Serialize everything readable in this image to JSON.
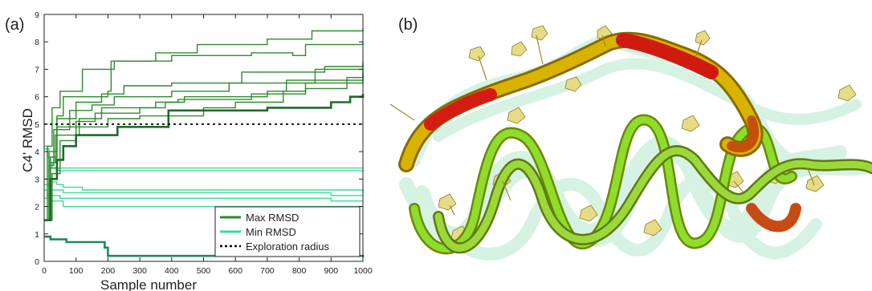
{
  "panels": {
    "a_label": "(a)",
    "b_label": "(b)"
  },
  "chart_data": {
    "type": "line",
    "xlabel": "Sample number",
    "ylabel": "C4' RMSD",
    "xlim": [
      0,
      1000
    ],
    "ylim": [
      0,
      9
    ],
    "xticks": [
      0,
      100,
      200,
      300,
      400,
      500,
      600,
      700,
      800,
      900,
      1000
    ],
    "yticks": [
      0,
      1,
      2,
      3,
      4,
      5,
      6,
      7,
      8,
      9
    ],
    "grid": false,
    "legend_position": "lower-right",
    "legend": [
      {
        "label": "Max RMSD",
        "style": "solid",
        "color": "#2e8b2e"
      },
      {
        "label": "Min RMSD",
        "style": "solid",
        "color": "#3ddc97"
      },
      {
        "label": "Exploration radius",
        "style": "dotted",
        "color": "#000000"
      }
    ],
    "exploration_radius": 5.0,
    "max_series": [
      {
        "bold": false,
        "points": [
          [
            0,
            1.5
          ],
          [
            10,
            4.2
          ],
          [
            25,
            5.6
          ],
          [
            50,
            6.2
          ],
          [
            120,
            7.0
          ],
          [
            200,
            7.0
          ],
          [
            220,
            7.3
          ],
          [
            300,
            7.3
          ],
          [
            350,
            7.6
          ],
          [
            420,
            7.6
          ],
          [
            480,
            7.9
          ],
          [
            650,
            7.9
          ],
          [
            700,
            8.1
          ],
          [
            820,
            8.1
          ],
          [
            840,
            8.4
          ],
          [
            960,
            8.4
          ],
          [
            1000,
            8.5
          ]
        ]
      },
      {
        "bold": false,
        "points": [
          [
            0,
            1.5
          ],
          [
            15,
            4.0
          ],
          [
            40,
            5.3
          ],
          [
            60,
            6.0
          ],
          [
            200,
            6.2
          ],
          [
            210,
            7.3
          ],
          [
            400,
            7.5
          ],
          [
            650,
            7.6
          ],
          [
            780,
            7.5
          ],
          [
            820,
            7.9
          ],
          [
            1000,
            8.0
          ]
        ]
      },
      {
        "bold": false,
        "points": [
          [
            0,
            1.5
          ],
          [
            20,
            3.8
          ],
          [
            40,
            5.2
          ],
          [
            100,
            5.8
          ],
          [
            180,
            6.1
          ],
          [
            250,
            6.4
          ],
          [
            400,
            6.5
          ],
          [
            560,
            6.5
          ],
          [
            620,
            6.9
          ],
          [
            800,
            6.9
          ],
          [
            880,
            7.1
          ],
          [
            1000,
            7.3
          ]
        ]
      },
      {
        "bold": false,
        "points": [
          [
            0,
            1.5
          ],
          [
            15,
            3.5
          ],
          [
            30,
            4.8
          ],
          [
            80,
            5.5
          ],
          [
            150,
            5.7
          ],
          [
            220,
            6.0
          ],
          [
            400,
            6.2
          ],
          [
            560,
            6.2
          ],
          [
            580,
            6.5
          ],
          [
            800,
            6.5
          ],
          [
            850,
            7.0
          ],
          [
            1000,
            7.2
          ]
        ]
      },
      {
        "bold": false,
        "points": [
          [
            0,
            1.5
          ],
          [
            20,
            3.6
          ],
          [
            35,
            4.6
          ],
          [
            110,
            5.2
          ],
          [
            180,
            5.6
          ],
          [
            250,
            5.6
          ],
          [
            350,
            5.8
          ],
          [
            440,
            6.0
          ],
          [
            700,
            6.2
          ],
          [
            760,
            6.6
          ],
          [
            1000,
            7.0
          ]
        ]
      },
      {
        "bold": false,
        "points": [
          [
            0,
            1.5
          ],
          [
            20,
            3.4
          ],
          [
            40,
            4.9
          ],
          [
            100,
            5.1
          ],
          [
            160,
            5.4
          ],
          [
            250,
            5.4
          ],
          [
            300,
            5.6
          ],
          [
            380,
            5.8
          ],
          [
            420,
            5.9
          ],
          [
            650,
            6.1
          ],
          [
            820,
            6.3
          ],
          [
            950,
            6.7
          ],
          [
            1000,
            6.9
          ]
        ]
      },
      {
        "bold": false,
        "points": [
          [
            0,
            1.5
          ],
          [
            25,
            3.2
          ],
          [
            50,
            4.4
          ],
          [
            100,
            4.9
          ],
          [
            200,
            5.2
          ],
          [
            300,
            5.3
          ],
          [
            500,
            5.6
          ],
          [
            600,
            5.8
          ],
          [
            750,
            6.2
          ],
          [
            820,
            6.5
          ],
          [
            1000,
            6.8
          ]
        ]
      },
      {
        "bold": true,
        "points": [
          [
            0,
            1.5
          ],
          [
            20,
            3.0
          ],
          [
            40,
            3.7
          ],
          [
            60,
            4.2
          ],
          [
            90,
            4.2
          ],
          [
            100,
            4.6
          ],
          [
            220,
            4.6
          ],
          [
            230,
            4.9
          ],
          [
            380,
            4.9
          ],
          [
            390,
            5.5
          ],
          [
            600,
            5.5
          ],
          [
            700,
            5.6
          ],
          [
            880,
            5.6
          ],
          [
            900,
            5.8
          ],
          [
            960,
            6.0
          ],
          [
            1000,
            6.1
          ]
        ]
      }
    ],
    "min_series": [
      {
        "bold": false,
        "points": [
          [
            0,
            4.2
          ],
          [
            10,
            3.8
          ],
          [
            20,
            3.6
          ],
          [
            40,
            3.4
          ],
          [
            1000,
            3.4
          ]
        ]
      },
      {
        "bold": false,
        "points": [
          [
            0,
            4.1
          ],
          [
            15,
            3.6
          ],
          [
            25,
            3.4
          ],
          [
            45,
            3.3
          ],
          [
            1000,
            3.3
          ]
        ]
      },
      {
        "bold": false,
        "points": [
          [
            0,
            3.0
          ],
          [
            20,
            2.9
          ],
          [
            40,
            2.8
          ],
          [
            60,
            2.7
          ],
          [
            120,
            2.6
          ],
          [
            1000,
            2.5
          ]
        ]
      },
      {
        "bold": false,
        "points": [
          [
            0,
            2.8
          ],
          [
            20,
            2.6
          ],
          [
            60,
            2.5
          ],
          [
            900,
            2.4
          ],
          [
            1000,
            2.4
          ]
        ]
      },
      {
        "bold": false,
        "points": [
          [
            0,
            2.6
          ],
          [
            10,
            2.4
          ],
          [
            50,
            2.3
          ],
          [
            900,
            2.2
          ],
          [
            1000,
            2.2
          ]
        ]
      },
      {
        "bold": false,
        "points": [
          [
            0,
            2.3
          ],
          [
            20,
            2.2
          ],
          [
            60,
            2.0
          ],
          [
            850,
            2.0
          ],
          [
            1000,
            2.0
          ]
        ]
      },
      {
        "bold": true,
        "points": [
          [
            0,
            0.9
          ],
          [
            20,
            0.8
          ],
          [
            60,
            0.8
          ],
          [
            70,
            0.7
          ],
          [
            120,
            0.7
          ],
          [
            190,
            0.5
          ],
          [
            200,
            0.2
          ],
          [
            1000,
            0.15
          ]
        ]
      }
    ]
  }
}
